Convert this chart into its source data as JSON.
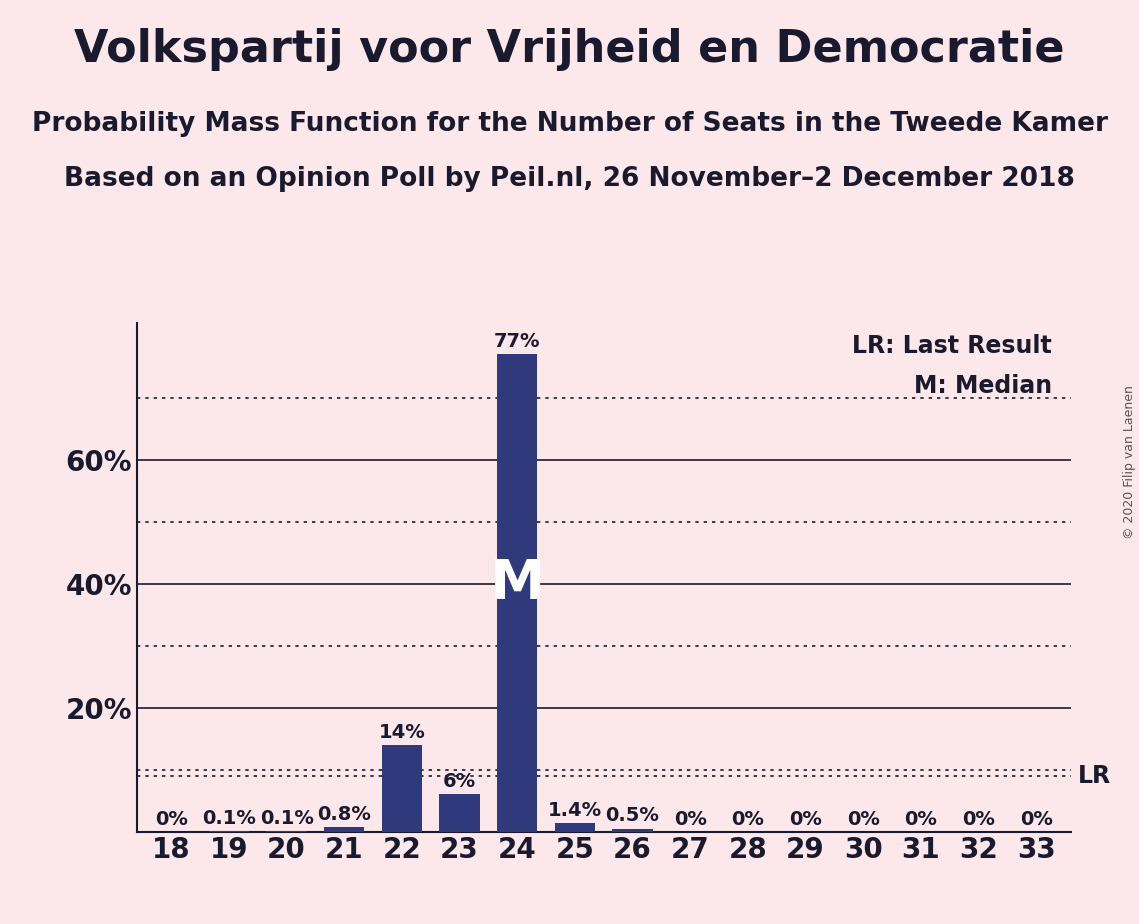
{
  "title": "Volkspartij voor Vrijheid en Democratie",
  "subtitle1": "Probability Mass Function for the Number of Seats in the Tweede Kamer",
  "subtitle2": "Based on an Opinion Poll by Peil.nl, 26 November–2 December 2018",
  "copyright": "© 2020 Filip van Laenen",
  "categories": [
    18,
    19,
    20,
    21,
    22,
    23,
    24,
    25,
    26,
    27,
    28,
    29,
    30,
    31,
    32,
    33
  ],
  "values": [
    0.0,
    0.1,
    0.1,
    0.8,
    14.0,
    6.0,
    77.0,
    1.4,
    0.5,
    0.0,
    0.0,
    0.0,
    0.0,
    0.0,
    0.0,
    0.0
  ],
  "bar_color": "#2e3a7c",
  "background_color": "#fce8ea",
  "median_seat": 24,
  "lr_value": 9.0,
  "lr_label": "LR",
  "median_label": "M",
  "legend_lr": "LR: Last Result",
  "legend_m": "M: Median",
  "ylim": [
    0,
    82
  ],
  "yticks": [
    20,
    40,
    60
  ],
  "ytick_labels": [
    "20%",
    "40%",
    "60%"
  ],
  "solid_gridlines": [
    20,
    40,
    60
  ],
  "dotted_gridlines": [
    10,
    30,
    50,
    70
  ],
  "bar_label_fontsize": 14,
  "tick_fontsize": 20,
  "title_fontsize": 32,
  "subtitle_fontsize": 19,
  "legend_fontsize": 17,
  "lr_fontsize": 17,
  "median_fontsize": 40
}
